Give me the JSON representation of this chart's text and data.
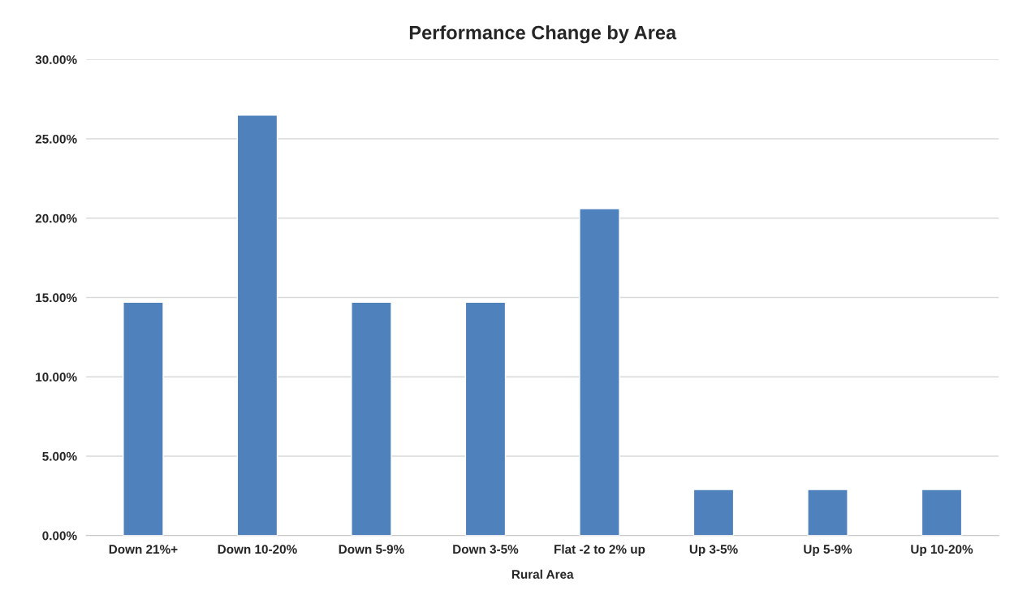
{
  "chart_data": {
    "type": "bar",
    "title": "Performance Change by Area",
    "xlabel": "Rural Area",
    "categories": [
      "Down 21%+",
      "Down 10-20%",
      "Down 5-9%",
      "Down 3-5%",
      "Flat -2 to 2% up",
      "Up 3-5%",
      "Up 5-9%",
      "Up 10-20%"
    ],
    "values": [
      14.7,
      26.5,
      14.7,
      14.7,
      20.6,
      2.9,
      2.9,
      2.9
    ],
    "color": "#4f81bd",
    "ylim": [
      0,
      30
    ],
    "yticks": [
      {
        "value": 0,
        "label": "0.00%"
      },
      {
        "value": 5,
        "label": "5.00%"
      },
      {
        "value": 10,
        "label": "10.00%"
      },
      {
        "value": 15,
        "label": "15.00%"
      },
      {
        "value": 20,
        "label": "20.00%"
      },
      {
        "value": 25,
        "label": "25.00%"
      },
      {
        "value": 30,
        "label": "30.00%"
      }
    ],
    "grid": "y"
  }
}
